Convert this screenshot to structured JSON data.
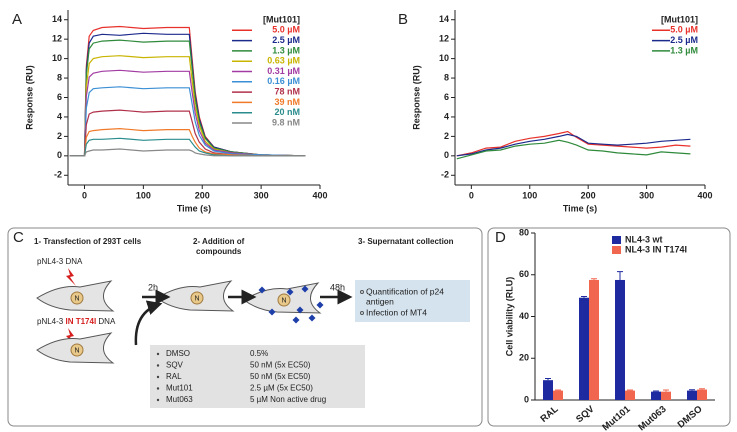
{
  "panel_labels": [
    "A",
    "B",
    "C",
    "D"
  ],
  "chart_data": [
    {
      "type": "line",
      "x_label": "Time (s)",
      "y_label": "Response (RU)",
      "legend_title": "[Mut101]",
      "x": [
        -25,
        -5,
        0,
        3,
        8,
        15,
        30,
        60,
        100,
        140,
        178,
        183,
        188,
        195,
        205,
        220,
        250,
        300,
        375
      ],
      "series": [
        {
          "name": "5.0 µM",
          "color": "#e8312b",
          "values": [
            0,
            0,
            0,
            9.2,
            12.3,
            12.9,
            13.2,
            13.3,
            13.1,
            13.2,
            13.2,
            9.9,
            6.6,
            4.0,
            2.0,
            0.9,
            0.4,
            0.1,
            0
          ]
        },
        {
          "name": "2.5 µM",
          "color": "#1c2a8c",
          "values": [
            0,
            0,
            0,
            8.8,
            11.6,
            12.3,
            12.5,
            12.4,
            12.6,
            12.5,
            12.5,
            9.4,
            6.3,
            3.8,
            1.9,
            0.9,
            0.4,
            0.1,
            0
          ]
        },
        {
          "name": "1.3 µM",
          "color": "#2f8a3b",
          "values": [
            0,
            0,
            0,
            8.3,
            11.0,
            11.6,
            11.8,
            11.9,
            11.7,
            11.8,
            11.8,
            8.9,
            5.9,
            3.5,
            1.8,
            0.8,
            0.4,
            0.1,
            0
          ]
        },
        {
          "name": "0.63 µM",
          "color": "#c9b400",
          "values": [
            0,
            0,
            0,
            7.1,
            9.5,
            10.0,
            10.2,
            10.3,
            10.1,
            10.2,
            10.2,
            7.7,
            5.1,
            3.1,
            1.5,
            0.7,
            0.3,
            0.1,
            0
          ]
        },
        {
          "name": "0.31 µM",
          "color": "#a23ca3",
          "values": [
            0,
            0,
            0,
            6.1,
            8.1,
            8.5,
            8.7,
            8.8,
            8.6,
            8.7,
            8.7,
            6.5,
            4.4,
            2.6,
            1.3,
            0.6,
            0.3,
            0.1,
            0
          ]
        },
        {
          "name": "0.16 µM",
          "color": "#3b8fd4",
          "values": [
            0,
            0,
            0,
            4.9,
            6.5,
            6.9,
            7.0,
            7.1,
            6.9,
            7.0,
            7.0,
            5.3,
            3.5,
            2.1,
            1.1,
            0.5,
            0.2,
            0.1,
            0
          ]
        },
        {
          "name": "78 nM",
          "color": "#b0304a",
          "values": [
            0,
            0,
            0,
            3.2,
            4.3,
            4.5,
            4.6,
            4.7,
            4.5,
            4.6,
            4.6,
            3.5,
            2.3,
            1.4,
            0.7,
            0.3,
            0.1,
            0,
            0
          ]
        },
        {
          "name": "39 nM",
          "color": "#f07a2a",
          "values": [
            0,
            0,
            0,
            1.9,
            2.5,
            2.6,
            2.7,
            2.8,
            2.6,
            2.7,
            2.7,
            2.0,
            1.4,
            0.8,
            0.4,
            0.2,
            0.1,
            0,
            0
          ]
        },
        {
          "name": "20 nM",
          "color": "#2a8c8c",
          "values": [
            0,
            0,
            0,
            1.2,
            1.6,
            1.7,
            1.7,
            1.8,
            1.6,
            1.7,
            1.7,
            1.3,
            0.9,
            0.5,
            0.3,
            0.1,
            0,
            0,
            0
          ]
        },
        {
          "name": "9.8 nM",
          "color": "#888888",
          "values": [
            0,
            0,
            0,
            0.4,
            0.5,
            0.6,
            0.6,
            0.7,
            0.5,
            0.6,
            0.6,
            0.5,
            0.3,
            0.2,
            0.1,
            0,
            0,
            0,
            0
          ]
        }
      ],
      "xlim": [
        -28,
        400
      ],
      "ylim": [
        -3,
        15
      ],
      "xticks": [
        0,
        100,
        200,
        300,
        400
      ],
      "yticks": [
        -2,
        0,
        2,
        4,
        6,
        8,
        10,
        12,
        14
      ]
    },
    {
      "type": "line",
      "x_label": "Time (s)",
      "y_label": "Response (RU)",
      "legend_title": "[Mut101]",
      "x": [
        -25,
        0,
        25,
        50,
        75,
        100,
        125,
        150,
        165,
        180,
        200,
        225,
        250,
        275,
        300,
        325,
        350,
        375
      ],
      "series": [
        {
          "name": "5.0 µM",
          "color": "#e8312b",
          "values": [
            0,
            0.3,
            0.8,
            0.9,
            1.5,
            1.8,
            2.0,
            2.3,
            2.5,
            1.9,
            1.2,
            1.1,
            1.0,
            0.9,
            0.8,
            0.9,
            1.1,
            1.0
          ]
        },
        {
          "name": "2.5 µM",
          "color": "#1c2a8c",
          "values": [
            0,
            0.2,
            0.6,
            0.8,
            1.2,
            1.5,
            1.7,
            2.0,
            2.2,
            2.0,
            1.3,
            1.2,
            1.1,
            1.2,
            1.3,
            1.5,
            1.6,
            1.7
          ]
        },
        {
          "name": "1.3 µM",
          "color": "#2f8a3b",
          "values": [
            -0.3,
            0.1,
            0.5,
            0.6,
            1.0,
            1.2,
            1.3,
            1.6,
            1.4,
            1.1,
            0.6,
            0.5,
            0.3,
            0.2,
            0.1,
            0.4,
            0.3,
            0.2
          ]
        }
      ],
      "xlim": [
        -28,
        400
      ],
      "ylim": [
        -3,
        15
      ],
      "xticks": [
        0,
        100,
        200,
        300,
        400
      ],
      "yticks": [
        -2,
        0,
        2,
        4,
        6,
        8,
        10,
        12,
        14
      ]
    },
    {
      "type": "bar",
      "y_label": "Cell viability (RLU)",
      "categories": [
        "RAL",
        "SQV",
        "Mut101",
        "Mut063",
        "DMSO"
      ],
      "series": [
        {
          "name": "NL4-3 wt",
          "color": "#1e2aa0",
          "values": [
            9.5,
            49,
            57.5,
            4,
            4.5
          ],
          "errors": [
            0.8,
            0.6,
            4.0,
            0.3,
            0.4
          ]
        },
        {
          "name": "NL4-3 IN T174I",
          "color": "#f0664f",
          "values": [
            4.5,
            57.5,
            4.5,
            4,
            5
          ],
          "errors": [
            0.3,
            0.6,
            0.3,
            0.8,
            0.4
          ]
        }
      ],
      "ylim": [
        0,
        80
      ],
      "yticks": [
        0,
        20,
        40,
        60,
        80
      ]
    }
  ],
  "diagram": {
    "step1": "1- Transfection of 293T cells",
    "step2": [
      "2- Addition of",
      "compounds"
    ],
    "step3": "3- Supernatant collection",
    "dna_wt": [
      "pNL4-3",
      "DNA"
    ],
    "dna_mut": [
      "pNL4-3",
      "IN T174I",
      "DNA"
    ],
    "nucleus": "N",
    "time1": "2h",
    "time2": "48h",
    "readouts": [
      [
        "Quantification of p24",
        "antigen"
      ],
      [
        "Infection of MT4"
      ]
    ],
    "compounds": [
      [
        "DMSO",
        "0.5%"
      ],
      [
        "SQV",
        "50 nM (5x EC50)"
      ],
      [
        "RAL",
        "50 nM (5x EC50)"
      ],
      [
        "Mut101",
        "2.5 µM (5x EC50)"
      ],
      [
        "Mut063",
        "5 µM  Non active drug"
      ]
    ]
  }
}
